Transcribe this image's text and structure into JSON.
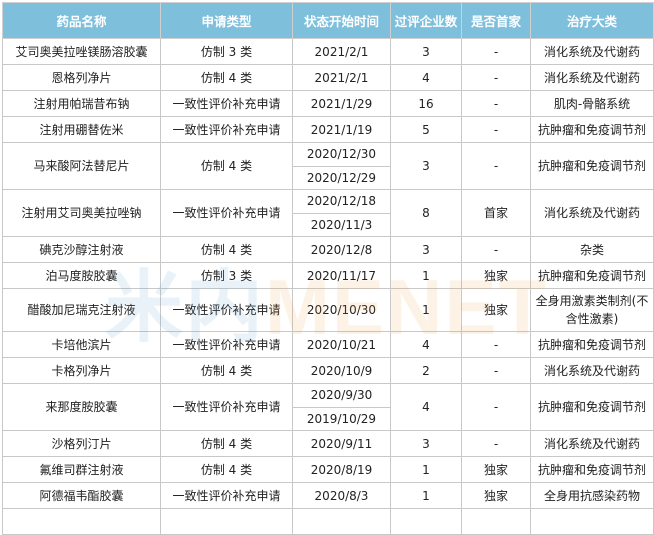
{
  "headers": [
    "药品名称",
    "申请类型",
    "状态开始时间",
    "过评企业数",
    "是否首家",
    "治疗大类"
  ],
  "rows": [
    {
      "name": "艾司奥美拉唑镁肠溶胶囊",
      "type": "仿制 3 类",
      "dates": [
        "2021/2/1"
      ],
      "count": "3",
      "first": "-",
      "category": "消化系统及代谢药"
    },
    {
      "name": "恩格列净片",
      "type": "仿制 4 类",
      "dates": [
        "2021/2/1"
      ],
      "count": "4",
      "first": "-",
      "category": "消化系统及代谢药"
    },
    {
      "name": "注射用帕瑞昔布钠",
      "type": "一致性评价补充申请",
      "dates": [
        "2021/1/29"
      ],
      "count": "16",
      "first": "-",
      "category": "肌肉-骨骼系统"
    },
    {
      "name": "注射用硼替佐米",
      "type": "一致性评价补充申请",
      "dates": [
        "2021/1/19"
      ],
      "count": "5",
      "first": "-",
      "category": "抗肿瘤和免疫调节剂"
    },
    {
      "name": "马来酸阿法替尼片",
      "type": "仿制 4 类",
      "dates": [
        "2020/12/30",
        "2020/12/29"
      ],
      "count": "3",
      "first": "-",
      "category": "抗肿瘤和免疫调节剂"
    },
    {
      "name": "注射用艾司奥美拉唑钠",
      "type": "一致性评价补充申请",
      "dates": [
        "2020/12/18",
        "2020/11/3"
      ],
      "count": "8",
      "first": "首家",
      "category": "消化系统及代谢药"
    },
    {
      "name": "碘克沙醇注射液",
      "type": "仿制 4 类",
      "dates": [
        "2020/12/8"
      ],
      "count": "3",
      "first": "-",
      "category": "杂类"
    },
    {
      "name": "泊马度胺胶囊",
      "type": "仿制 3 类",
      "dates": [
        "2020/11/17"
      ],
      "count": "1",
      "first": "独家",
      "category": "抗肿瘤和免疫调节剂"
    },
    {
      "name": "醋酸加尼瑞克注射液",
      "type": "一致性评价补充申请",
      "dates": [
        "2020/10/30"
      ],
      "count": "1",
      "first": "独家",
      "category": "全身用激素类制剂(不含性激素)",
      "tall": true
    },
    {
      "name": "卡培他滨片",
      "type": "一致性评价补充申请",
      "dates": [
        "2020/10/21"
      ],
      "count": "4",
      "first": "-",
      "category": "抗肿瘤和免疫调节剂"
    },
    {
      "name": "卡格列净片",
      "type": "仿制 4 类",
      "dates": [
        "2020/10/9"
      ],
      "count": "2",
      "first": "-",
      "category": "消化系统及代谢药"
    },
    {
      "name": "来那度胺胶囊",
      "type": "一致性评价补充申请",
      "dates": [
        "2020/9/30",
        "2019/10/29"
      ],
      "count": "4",
      "first": "-",
      "category": "抗肿瘤和免疫调节剂"
    },
    {
      "name": "沙格列汀片",
      "type": "仿制 4 类",
      "dates": [
        "2020/9/11"
      ],
      "count": "3",
      "first": "-",
      "category": "消化系统及代谢药"
    },
    {
      "name": "氟维司群注射液",
      "type": "仿制 4 类",
      "dates": [
        "2020/8/19"
      ],
      "count": "1",
      "first": "独家",
      "category": "抗肿瘤和免疫调节剂"
    },
    {
      "name": "阿德福韦酯胶囊",
      "type": "一致性评价补充申请",
      "dates": [
        "2020/8/3"
      ],
      "count": "1",
      "first": "独家",
      "category": "全身用抗感染药物"
    },
    {
      "name": "",
      "type": "",
      "dates": [
        ""
      ],
      "count": "",
      "first": "",
      "category": ""
    }
  ],
  "watermark": {
    "part1": "米内",
    "part2": "MENET"
  },
  "colors": {
    "header_bg": "#7ebfdc",
    "header_text": "#ffffff",
    "border": "#c8c8c8"
  }
}
